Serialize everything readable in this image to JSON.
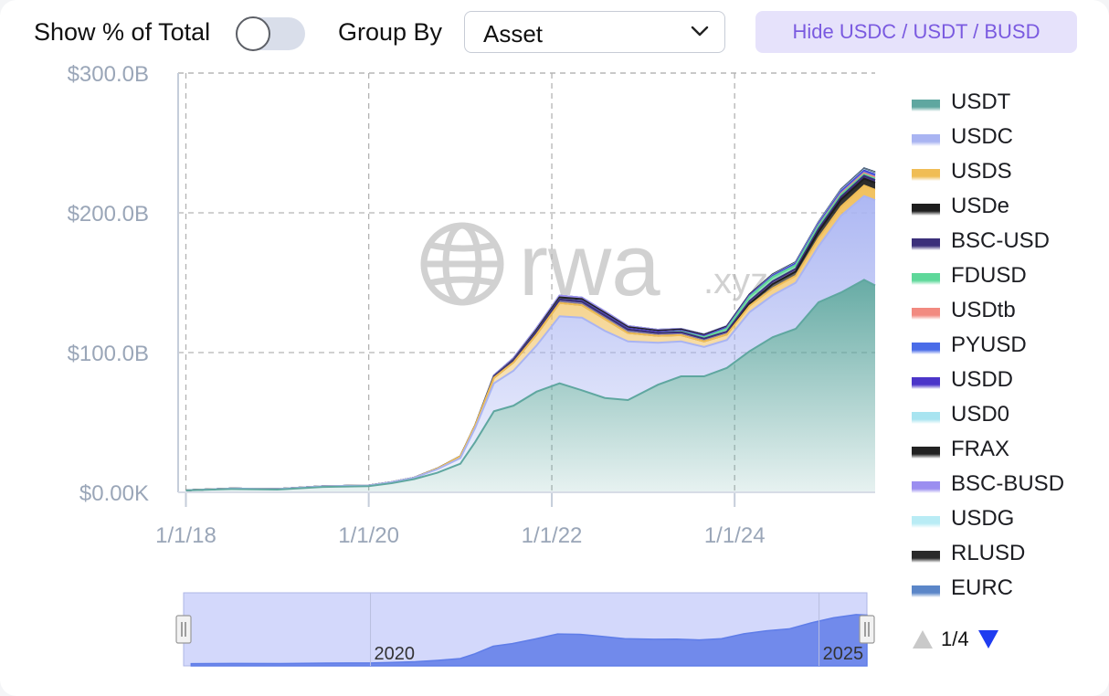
{
  "toolbar": {
    "show_pct_label": "Show % of Total",
    "show_pct_on": false,
    "group_by_label": "Group By",
    "group_by_value": "Asset",
    "hide_button_label": "Hide USDC / USDT / BUSD"
  },
  "watermark": {
    "brand": "rwa",
    "suffix": ".xyz"
  },
  "legend_pager": {
    "text": "1/4"
  },
  "navigator": {
    "tick_labels": [
      "2020",
      "2025"
    ]
  },
  "colors": {
    "USDT": "#5fa7a0",
    "USDC": "#a9b4f2",
    "USDS": "#f0bd55",
    "USDe": "#1e1e1e",
    "BSC-USD": "#3b2f7a",
    "FDUSD": "#5ed89a",
    "USDtb": "#f28a80",
    "PYUSD": "#4a6ce8",
    "USDD": "#4b35c9",
    "USD0": "#a8e4f0",
    "FRAX": "#222222",
    "BSC-BUSD": "#9b8ef0",
    "USDG": "#b9ecf5",
    "RLUSD": "#2a2a2a",
    "EURC": "#5b86c8",
    "navigator_fill": "#d3d8fb",
    "navigator_area": "#5f7de8",
    "grid": "#b3b3b3",
    "axis_text": "#9aa6b8"
  },
  "chart_data": {
    "type": "area",
    "stacked": true,
    "xlabel": "",
    "ylabel": "",
    "x_ticks": [
      "1/1/18",
      "1/1/20",
      "1/1/22",
      "1/1/24"
    ],
    "y_ticks": [
      "$0.00K",
      "$100.0B",
      "$200.0B",
      "$300.0B"
    ],
    "ylim": [
      0,
      300
    ],
    "y_unit": "B USD",
    "grid": true,
    "legend_position": "right",
    "x": [
      "2018-01-01",
      "2018-07-01",
      "2019-01-01",
      "2019-07-01",
      "2020-01-01",
      "2020-04-01",
      "2020-07-01",
      "2020-10-01",
      "2021-01-01",
      "2021-03-01",
      "2021-05-15",
      "2021-08-01",
      "2021-11-01",
      "2022-02-01",
      "2022-05-01",
      "2022-08-01",
      "2022-11-01",
      "2023-03-01",
      "2023-06-01",
      "2023-09-01",
      "2023-12-01",
      "2024-03-01",
      "2024-06-01",
      "2024-09-01",
      "2024-12-01",
      "2025-03-01",
      "2025-06-01",
      "2025-07-15"
    ],
    "series": [
      {
        "name": "USDT",
        "values": [
          1.4,
          2.4,
          2.0,
          3.8,
          4.4,
          6.5,
          9.5,
          14.0,
          20.5,
          36.0,
          58.0,
          62.0,
          72.0,
          78.0,
          73.0,
          67.5,
          66.0,
          77.0,
          83.0,
          83.0,
          89.0,
          101.0,
          111.0,
          117.0,
          136.0,
          143.0,
          152.0,
          148.0
        ]
      },
      {
        "name": "USDC",
        "values": [
          0.1,
          0.3,
          0.4,
          0.5,
          0.5,
          0.8,
          1.0,
          2.5,
          4.0,
          10.0,
          20.0,
          25.0,
          33.0,
          48.0,
          52.0,
          48.0,
          42.0,
          30.0,
          25.0,
          21.0,
          20.0,
          28.0,
          30.0,
          33.0,
          40.0,
          55.0,
          60.0,
          61.0
        ]
      },
      {
        "name": "USDS",
        "values": [
          0.0,
          0.0,
          0.0,
          0.0,
          0.0,
          0.0,
          0.0,
          0.5,
          1.2,
          1.8,
          4.0,
          6.0,
          8.0,
          9.5,
          9.0,
          8.5,
          6.0,
          5.0,
          4.5,
          4.0,
          4.0,
          4.5,
          5.0,
          5.0,
          6.0,
          6.5,
          7.5,
          7.5
        ]
      },
      {
        "name": "USDe",
        "values": [
          0,
          0,
          0,
          0,
          0,
          0,
          0,
          0,
          0,
          0,
          0,
          0,
          0,
          0,
          0,
          0,
          0,
          0,
          0,
          0,
          0,
          1.5,
          3.0,
          3.0,
          4.5,
          5.0,
          5.0,
          5.0
        ]
      },
      {
        "name": "BSC-USD",
        "values": [
          0,
          0,
          0,
          0,
          0,
          0,
          0,
          0,
          0,
          0,
          1.0,
          1.5,
          2.0,
          2.5,
          2.5,
          2.5,
          2.5,
          2.0,
          2.0,
          2.0,
          2.0,
          2.0,
          2.0,
          2.0,
          2.0,
          2.0,
          2.0,
          2.0
        ]
      },
      {
        "name": "FDUSD",
        "values": [
          0,
          0,
          0,
          0,
          0,
          0,
          0,
          0,
          0,
          0,
          0,
          0,
          0,
          0,
          0,
          0,
          0,
          0,
          0.5,
          1.0,
          2.0,
          3.0,
          3.0,
          2.5,
          2.0,
          1.5,
          1.0,
          1.0
        ]
      },
      {
        "name": "USDtb",
        "values": [
          0,
          0,
          0,
          0,
          0,
          0,
          0,
          0,
          0,
          0,
          0,
          0,
          0,
          0,
          0,
          0,
          0,
          0,
          0,
          0,
          0,
          0,
          0,
          0,
          0.3,
          0.8,
          1.0,
          1.0
        ]
      },
      {
        "name": "PYUSD",
        "values": [
          0,
          0,
          0,
          0,
          0,
          0,
          0,
          0,
          0,
          0,
          0,
          0,
          0,
          0,
          0,
          0,
          0,
          0,
          0,
          0.2,
          0.3,
          0.3,
          0.4,
          0.6,
          0.6,
          0.8,
          0.9,
          1.0
        ]
      },
      {
        "name": "USDD",
        "values": [
          0,
          0,
          0,
          0,
          0,
          0,
          0,
          0,
          0,
          0,
          0,
          0,
          0,
          0,
          0.5,
          0.7,
          0.7,
          0.7,
          0.7,
          0.7,
          0.7,
          0.7,
          0.7,
          0.7,
          0.8,
          0.8,
          0.8,
          0.8
        ]
      },
      {
        "name": "USD0",
        "values": [
          0,
          0,
          0,
          0,
          0,
          0,
          0,
          0,
          0,
          0,
          0,
          0,
          0,
          0,
          0,
          0,
          0,
          0,
          0,
          0,
          0,
          0,
          0.3,
          0.4,
          0.6,
          0.6,
          0.6,
          0.6
        ]
      },
      {
        "name": "FRAX",
        "values": [
          0,
          0,
          0,
          0,
          0,
          0,
          0,
          0,
          0,
          0,
          0.2,
          0.5,
          1.2,
          1.5,
          1.3,
          1.2,
          1.0,
          1.0,
          0.9,
          0.8,
          0.7,
          0.6,
          0.5,
          0.4,
          0.3,
          0.3,
          0.3,
          0.3
        ]
      },
      {
        "name": "BSC-BUSD",
        "values": [
          0,
          0,
          0,
          0,
          0,
          0,
          0,
          0,
          0,
          0,
          0.5,
          1.0,
          1.2,
          1.2,
          1.0,
          1.0,
          0.8,
          0.6,
          0.4,
          0.3,
          0.2,
          0.1,
          0.1,
          0.1,
          0.1,
          0.1,
          0.1,
          0.1
        ]
      },
      {
        "name": "USDG",
        "values": [
          0,
          0,
          0,
          0,
          0,
          0,
          0,
          0,
          0,
          0,
          0,
          0,
          0,
          0,
          0,
          0,
          0,
          0,
          0,
          0,
          0,
          0,
          0,
          0,
          0,
          0.1,
          0.2,
          0.3
        ]
      },
      {
        "name": "RLUSD",
        "values": [
          0,
          0,
          0,
          0,
          0,
          0,
          0,
          0,
          0,
          0,
          0,
          0,
          0,
          0,
          0,
          0,
          0,
          0,
          0,
          0,
          0,
          0,
          0,
          0,
          0.1,
          0.2,
          0.3,
          0.4
        ]
      },
      {
        "name": "EURC",
        "values": [
          0,
          0,
          0,
          0,
          0,
          0,
          0,
          0,
          0,
          0,
          0,
          0,
          0,
          0,
          0,
          0,
          0,
          0,
          0,
          0,
          0.1,
          0.1,
          0.1,
          0.1,
          0.1,
          0.2,
          0.2,
          0.2
        ]
      }
    ]
  }
}
